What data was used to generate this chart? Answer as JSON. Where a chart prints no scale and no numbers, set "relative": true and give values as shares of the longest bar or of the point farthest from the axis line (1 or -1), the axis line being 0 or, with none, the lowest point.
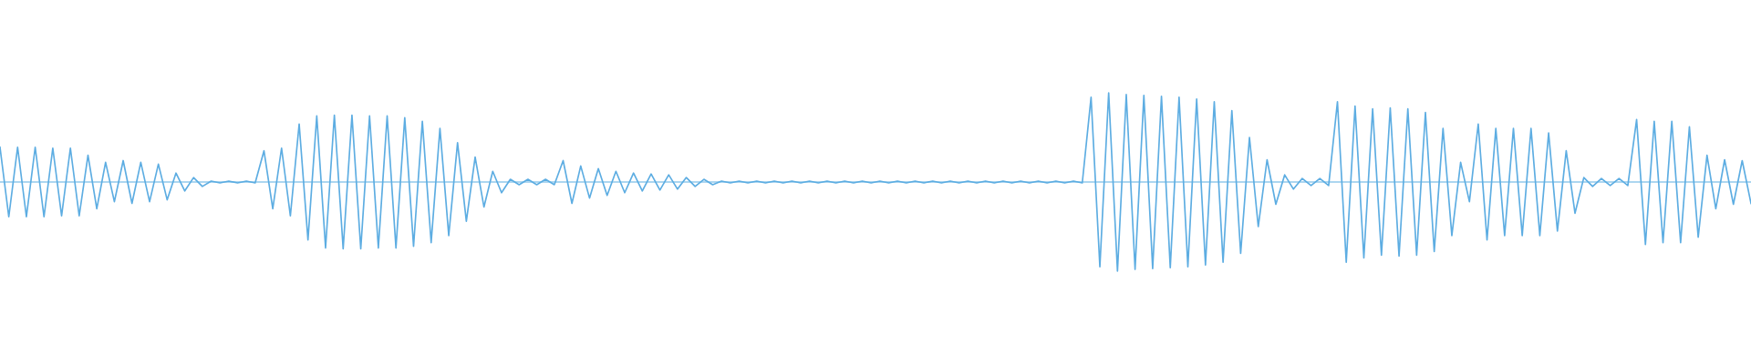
{
  "chart_data": {
    "type": "line",
    "relative": true,
    "ref_lines": [
      {
        "axis": "y",
        "value": 0,
        "color": "#5dade2"
      }
    ],
    "categories": [
      null,
      null,
      null,
      null,
      null,
      null,
      null,
      null,
      null,
      null,
      null,
      null,
      null,
      null,
      null,
      null,
      null,
      null,
      null,
      null,
      null,
      null,
      null,
      null,
      null,
      null,
      null,
      null,
      null,
      null,
      null,
      null,
      null,
      null,
      null,
      null,
      null,
      null,
      null,
      null,
      null,
      null,
      null,
      null,
      null,
      null,
      null,
      null,
      null,
      null,
      null,
      null,
      null,
      null,
      null,
      null,
      null,
      null,
      null,
      null,
      null,
      null,
      null,
      null,
      null,
      null,
      null,
      null,
      null,
      null,
      null,
      null,
      null,
      null,
      null,
      null,
      null,
      null,
      null,
      null,
      null,
      null,
      null,
      null,
      null,
      null,
      null,
      null,
      null,
      null,
      null,
      null,
      null,
      null,
      null,
      null,
      null,
      null,
      null,
      null,
      null,
      null,
      null,
      null,
      null,
      null,
      null,
      null,
      null,
      null,
      null,
      null,
      null,
      null,
      null,
      null,
      null,
      null,
      null,
      null,
      null,
      null,
      null,
      null,
      null,
      null,
      null,
      null,
      null,
      null,
      null,
      null,
      null,
      null,
      null,
      null,
      null,
      null,
      null,
      null,
      null,
      null,
      null,
      null,
      null,
      null,
      null,
      null,
      null,
      null,
      null,
      null,
      null,
      null,
      null,
      null,
      null,
      null,
      null,
      null,
      null,
      null,
      null,
      null,
      null,
      null,
      null,
      null,
      null,
      null,
      null,
      null,
      null,
      null,
      null,
      null,
      null,
      null,
      null,
      null,
      null,
      null,
      null,
      null,
      null,
      null,
      null,
      null,
      null,
      null,
      null,
      null,
      null,
      null,
      null,
      null,
      null,
      null,
      null,
      null
    ],
    "series": [
      {
        "color": "#5dade2",
        "values": [
          0.39,
          -0.39,
          0.39,
          -0.39,
          0.39,
          -0.39,
          0.38,
          -0.38,
          0.38,
          -0.38,
          0.3,
          -0.3,
          0.22,
          -0.22,
          0.24,
          -0.24,
          0.22,
          -0.22,
          0.2,
          -0.2,
          0.1,
          -0.1,
          0.05,
          -0.05,
          0.01,
          -0.01,
          0.01,
          -0.01,
          0.01,
          -0.01,
          0.35,
          -0.3,
          0.38,
          -0.38,
          0.65,
          -0.65,
          0.74,
          -0.74,
          0.75,
          -0.75,
          0.75,
          -0.75,
          0.74,
          -0.74,
          0.74,
          -0.74,
          0.72,
          -0.72,
          0.68,
          -0.68,
          0.6,
          -0.6,
          0.44,
          -0.44,
          0.28,
          -0.28,
          0.12,
          -0.12,
          0.03,
          -0.03,
          0.03,
          -0.03,
          0.03,
          -0.03,
          0.24,
          -0.24,
          0.18,
          -0.18,
          0.15,
          -0.15,
          0.12,
          -0.12,
          0.1,
          -0.1,
          0.09,
          -0.09,
          0.08,
          -0.08,
          0.05,
          -0.05,
          0.03,
          -0.03,
          0.01,
          -0.01,
          0.01,
          -0.01,
          0.01,
          -0.01,
          0.01,
          -0.01,
          0.01,
          -0.01,
          0.01,
          -0.01,
          0.01,
          -0.01,
          0.01,
          -0.01,
          0.01,
          -0.01,
          0.01,
          -0.01,
          0.01,
          -0.01,
          0.01,
          -0.01,
          0.01,
          -0.01,
          0.01,
          -0.01,
          0.01,
          -0.01,
          0.01,
          -0.01,
          0.01,
          -0.01,
          0.01,
          -0.01,
          0.01,
          -0.01,
          0.01,
          -0.01,
          0.01,
          -0.01,
          0.95,
          -0.95,
          1.0,
          -1.0,
          0.98,
          -0.98,
          0.97,
          -0.97,
          0.96,
          -0.96,
          0.95,
          -0.95,
          0.93,
          -0.93,
          0.9,
          -0.9,
          0.8,
          -0.8,
          0.5,
          -0.5,
          0.25,
          -0.25,
          0.08,
          -0.08,
          0.04,
          -0.04,
          0.04,
          -0.04,
          0.9,
          -0.9,
          0.85,
          -0.85,
          0.82,
          -0.82,
          0.83,
          -0.83,
          0.82,
          -0.82,
          0.78,
          -0.78,
          0.6,
          -0.6,
          0.22,
          -0.22,
          0.65,
          -0.65,
          0.6,
          -0.6,
          0.6,
          -0.6,
          0.6,
          -0.6,
          0.55,
          -0.55,
          0.35,
          -0.35,
          0.05,
          -0.05,
          0.04,
          -0.04,
          0.04,
          -0.04,
          0.7,
          -0.7,
          0.68,
          -0.68,
          0.68,
          -0.68,
          0.62,
          -0.62,
          0.3,
          -0.3,
          0.25,
          -0.25,
          0.24,
          -0.24
        ]
      }
    ]
  }
}
